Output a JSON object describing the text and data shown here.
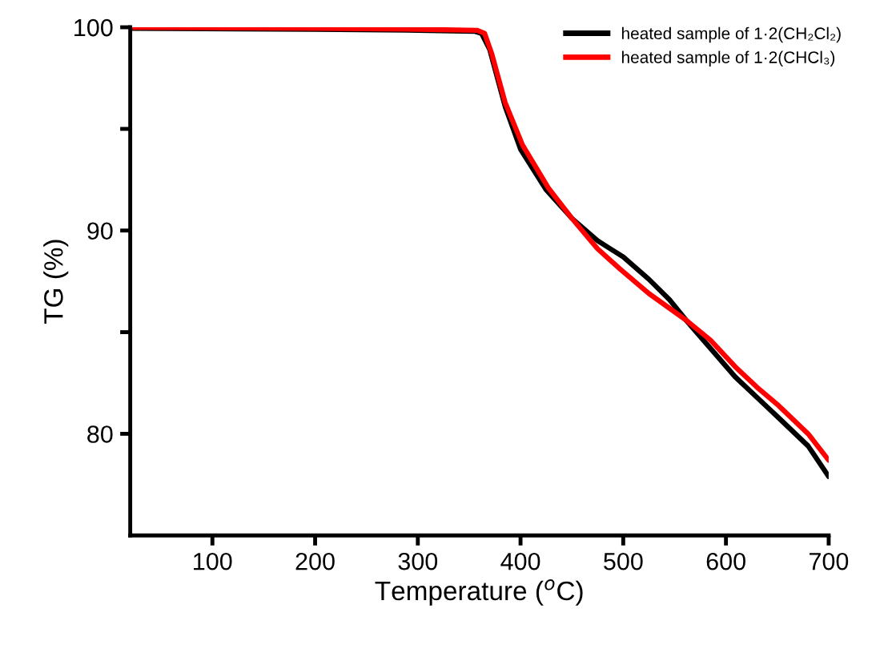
{
  "chart_data": {
    "type": "line",
    "xlabel": "Temperature ($^{o}$C)",
    "ylabel": "TG (%)",
    "xlim": [
      20,
      700
    ],
    "ylim": [
      75,
      100
    ],
    "xticks": [
      100,
      200,
      300,
      400,
      500,
      600,
      700
    ],
    "yticks": [
      {
        "value": 80,
        "label": "80"
      },
      {
        "value": 85,
        "label": null
      },
      {
        "value": 90,
        "label": "90"
      },
      {
        "value": 95,
        "label": null
      },
      {
        "value": 100,
        "label": "100"
      }
    ],
    "grid": false,
    "legend": "top right",
    "marker": "none",
    "line_style": "solid",
    "series": [
      {
        "name": "heated sample of 1·2(CH₂Cl₂)",
        "color": "#000000",
        "x": [
          20,
          200,
          300,
          355,
          362,
          370,
          385,
          400,
          425,
          450,
          475,
          500,
          525,
          545,
          561,
          585,
          609,
          630,
          651,
          680,
          700
        ],
        "values": [
          99.95,
          99.9,
          99.85,
          99.8,
          99.7,
          98.9,
          96.1,
          94.0,
          92.0,
          90.6,
          89.5,
          88.7,
          87.6,
          86.6,
          85.6,
          84.2,
          82.8,
          81.8,
          80.8,
          79.4,
          77.9
        ]
      },
      {
        "name": "heated sample of 1·2(CHCl₃)",
        "color": "#ff0000",
        "x": [
          20,
          200,
          300,
          358,
          365,
          372,
          385,
          402,
          427,
          450,
          475,
          497,
          525,
          561,
          585,
          609,
          630,
          651,
          680,
          700
        ],
        "values": [
          100,
          99.95,
          99.9,
          99.85,
          99.7,
          98.7,
          96.3,
          94.2,
          92.1,
          90.6,
          89.1,
          88.1,
          86.9,
          85.6,
          84.6,
          83.3,
          82.3,
          81.4,
          80.0,
          78.7
        ]
      }
    ]
  }
}
